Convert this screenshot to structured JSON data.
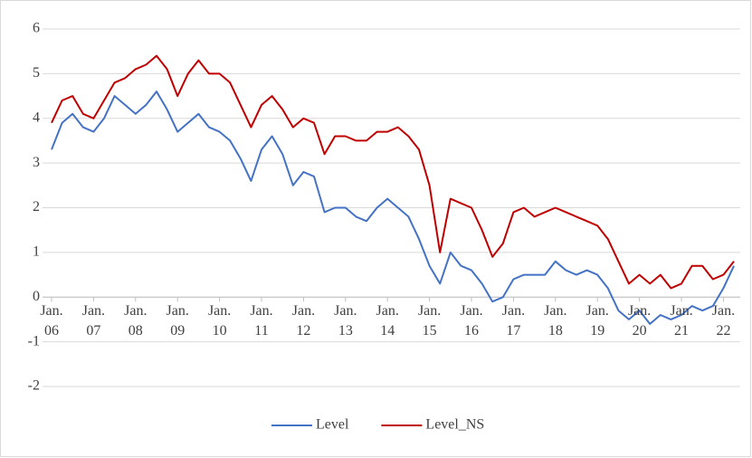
{
  "chart_data": {
    "type": "line",
    "x": [
      2006.0,
      2006.25,
      2006.5,
      2006.75,
      2007.0,
      2007.25,
      2007.5,
      2007.75,
      2008.0,
      2008.25,
      2008.5,
      2008.75,
      2009.0,
      2009.25,
      2009.5,
      2009.75,
      2010.0,
      2010.25,
      2010.5,
      2010.75,
      2011.0,
      2011.25,
      2011.5,
      2011.75,
      2012.0,
      2012.25,
      2012.5,
      2012.75,
      2013.0,
      2013.25,
      2013.5,
      2013.75,
      2014.0,
      2014.25,
      2014.5,
      2014.75,
      2015.0,
      2015.25,
      2015.5,
      2015.75,
      2016.0,
      2016.25,
      2016.5,
      2016.75,
      2017.0,
      2017.25,
      2017.5,
      2017.75,
      2018.0,
      2018.25,
      2018.5,
      2018.75,
      2019.0,
      2019.25,
      2019.5,
      2019.75,
      2020.0,
      2020.25,
      2020.5,
      2020.75,
      2021.0,
      2021.25,
      2021.5,
      2021.75,
      2022.0,
      2022.25
    ],
    "series": [
      {
        "name": "Level",
        "color": "#4472c4",
        "values": [
          3.3,
          3.9,
          4.1,
          3.8,
          3.7,
          4.0,
          4.5,
          4.3,
          4.1,
          4.3,
          4.6,
          4.2,
          3.7,
          3.9,
          4.1,
          3.8,
          3.7,
          3.5,
          3.1,
          2.6,
          3.3,
          3.6,
          3.2,
          2.5,
          2.8,
          2.7,
          1.9,
          2.0,
          2.0,
          1.8,
          1.7,
          2.0,
          2.2,
          2.0,
          1.8,
          1.3,
          0.7,
          0.3,
          1.0,
          0.7,
          0.6,
          0.3,
          -0.1,
          0.0,
          0.4,
          0.5,
          0.5,
          0.5,
          0.8,
          0.6,
          0.5,
          0.6,
          0.5,
          0.2,
          -0.3,
          -0.5,
          -0.3,
          -0.6,
          -0.4,
          -0.5,
          -0.4,
          -0.2,
          -0.3,
          -0.2,
          0.2,
          0.7
        ]
      },
      {
        "name": "Level_NS",
        "color": "#c00000",
        "values": [
          3.9,
          4.4,
          4.5,
          4.1,
          4.0,
          4.4,
          4.8,
          4.9,
          5.1,
          5.2,
          5.4,
          5.1,
          4.5,
          5.0,
          5.3,
          5.0,
          5.0,
          4.8,
          4.3,
          3.8,
          4.3,
          4.5,
          4.2,
          3.8,
          4.0,
          3.9,
          3.2,
          3.6,
          3.6,
          3.5,
          3.5,
          3.7,
          3.7,
          3.8,
          3.6,
          3.3,
          2.5,
          1.0,
          2.2,
          2.1,
          2.0,
          1.5,
          0.9,
          1.2,
          1.9,
          2.0,
          1.8,
          1.9,
          2.0,
          1.9,
          1.8,
          1.7,
          1.6,
          1.3,
          0.8,
          0.3,
          0.5,
          0.3,
          0.5,
          0.2,
          0.3,
          0.7,
          0.7,
          0.4,
          0.5,
          0.8
        ]
      }
    ],
    "xlim": [
      2006,
      2022.4
    ],
    "xticks": [
      {
        "value": 2006,
        "label": "Jan. 06"
      },
      {
        "value": 2007,
        "label": "Jan. 07"
      },
      {
        "value": 2008,
        "label": "Jan. 08"
      },
      {
        "value": 2009,
        "label": "Jan. 09"
      },
      {
        "value": 2010,
        "label": "Jan. 10"
      },
      {
        "value": 2011,
        "label": "Jan. 11"
      },
      {
        "value": 2012,
        "label": "Jan. 12"
      },
      {
        "value": 2013,
        "label": "Jan. 13"
      },
      {
        "value": 2014,
        "label": "Jan. 14"
      },
      {
        "value": 2015,
        "label": "Jan. 15"
      },
      {
        "value": 2016,
        "label": "Jan. 16"
      },
      {
        "value": 2017,
        "label": "Jan. 17"
      },
      {
        "value": 2018,
        "label": "Jan. 18"
      },
      {
        "value": 2019,
        "label": "Jan. 19"
      },
      {
        "value": 2020,
        "label": "Jan. 20"
      },
      {
        "value": 2021,
        "label": "Jan. 21"
      },
      {
        "value": 2022,
        "label": "Jan. 22"
      }
    ],
    "ylim": [
      -2,
      6
    ],
    "yticks": [
      -2,
      -1,
      0,
      1,
      2,
      3,
      4,
      5,
      6
    ],
    "grid": true,
    "legend": "bottom"
  }
}
